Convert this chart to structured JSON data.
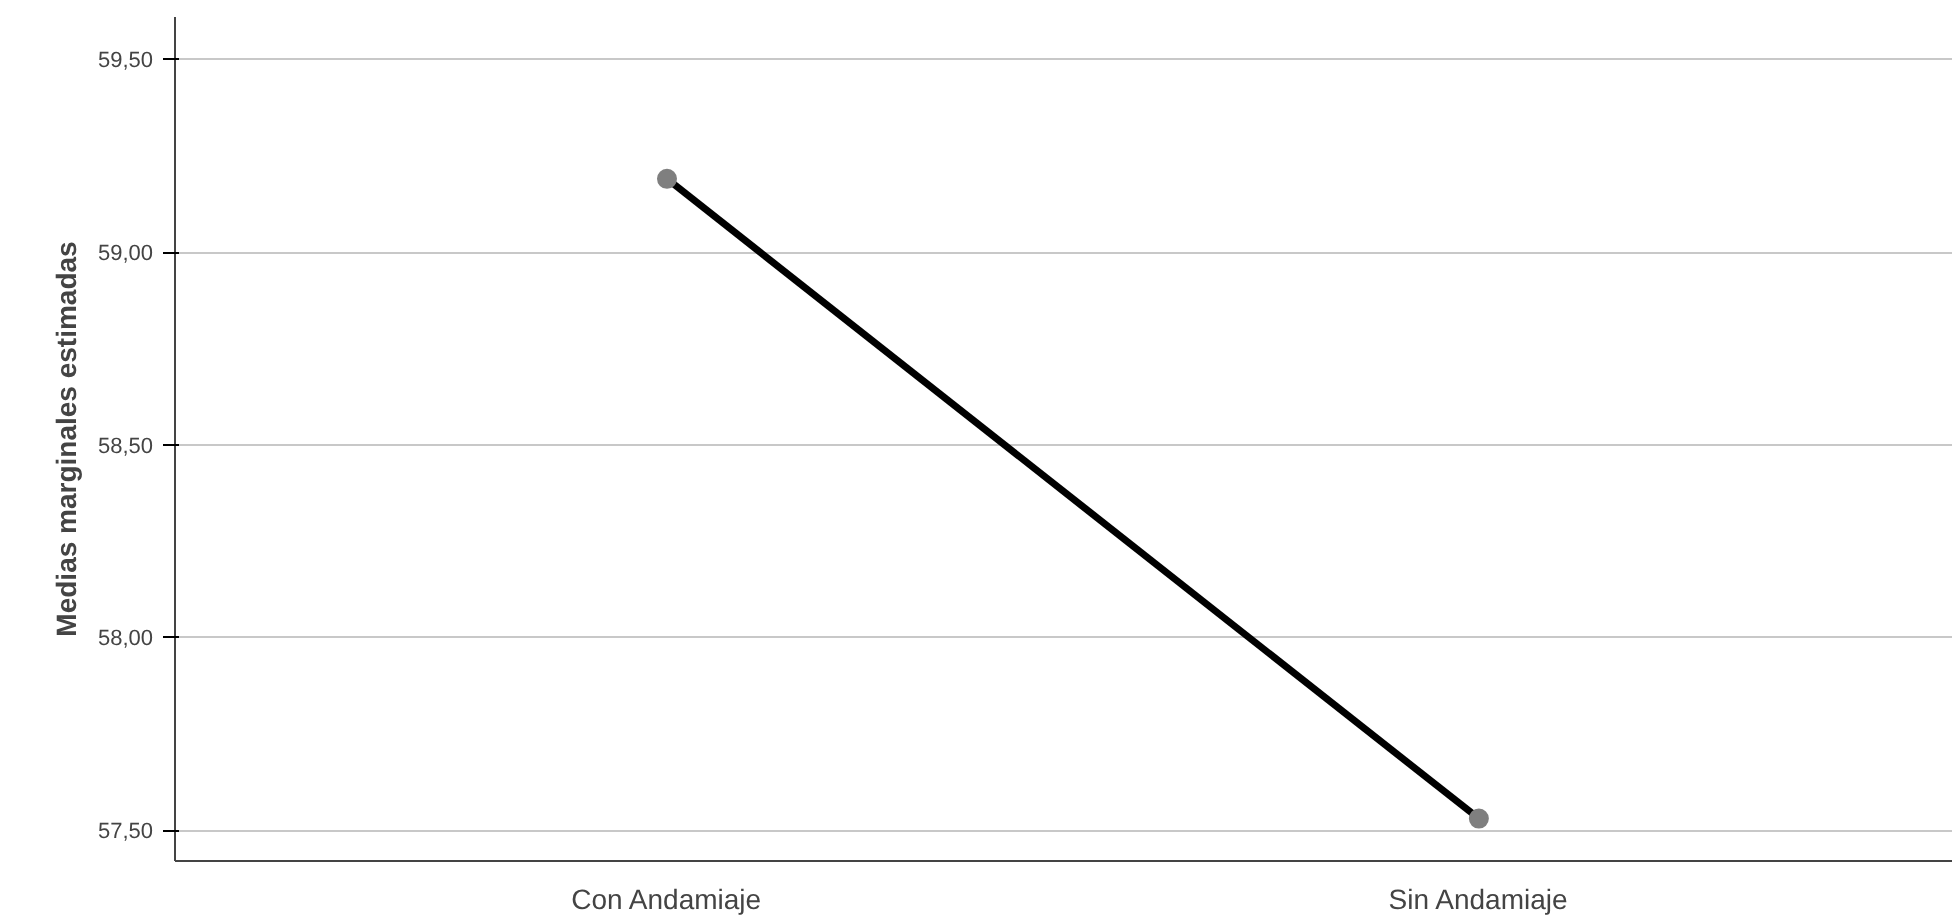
{
  "chart_data": {
    "type": "line",
    "ylabel": "Medias marginales estimadas",
    "categories": [
      "Con Andamiaje",
      "Sin Andamiaje"
    ],
    "series": [
      {
        "color": "#000000",
        "values": [
          59.19,
          57.53
        ]
      }
    ],
    "ylim": [
      57.42,
      59.61
    ],
    "yticks": [
      {
        "value": 57.5,
        "label": "57,50"
      },
      {
        "value": 58.0,
        "label": "58,00"
      },
      {
        "value": 58.5,
        "label": "58,50"
      },
      {
        "value": 59.0,
        "label": "59,00"
      },
      {
        "value": 59.5,
        "label": "59,50"
      }
    ],
    "grid": "y",
    "marker": "circle",
    "line_style": "solid"
  }
}
